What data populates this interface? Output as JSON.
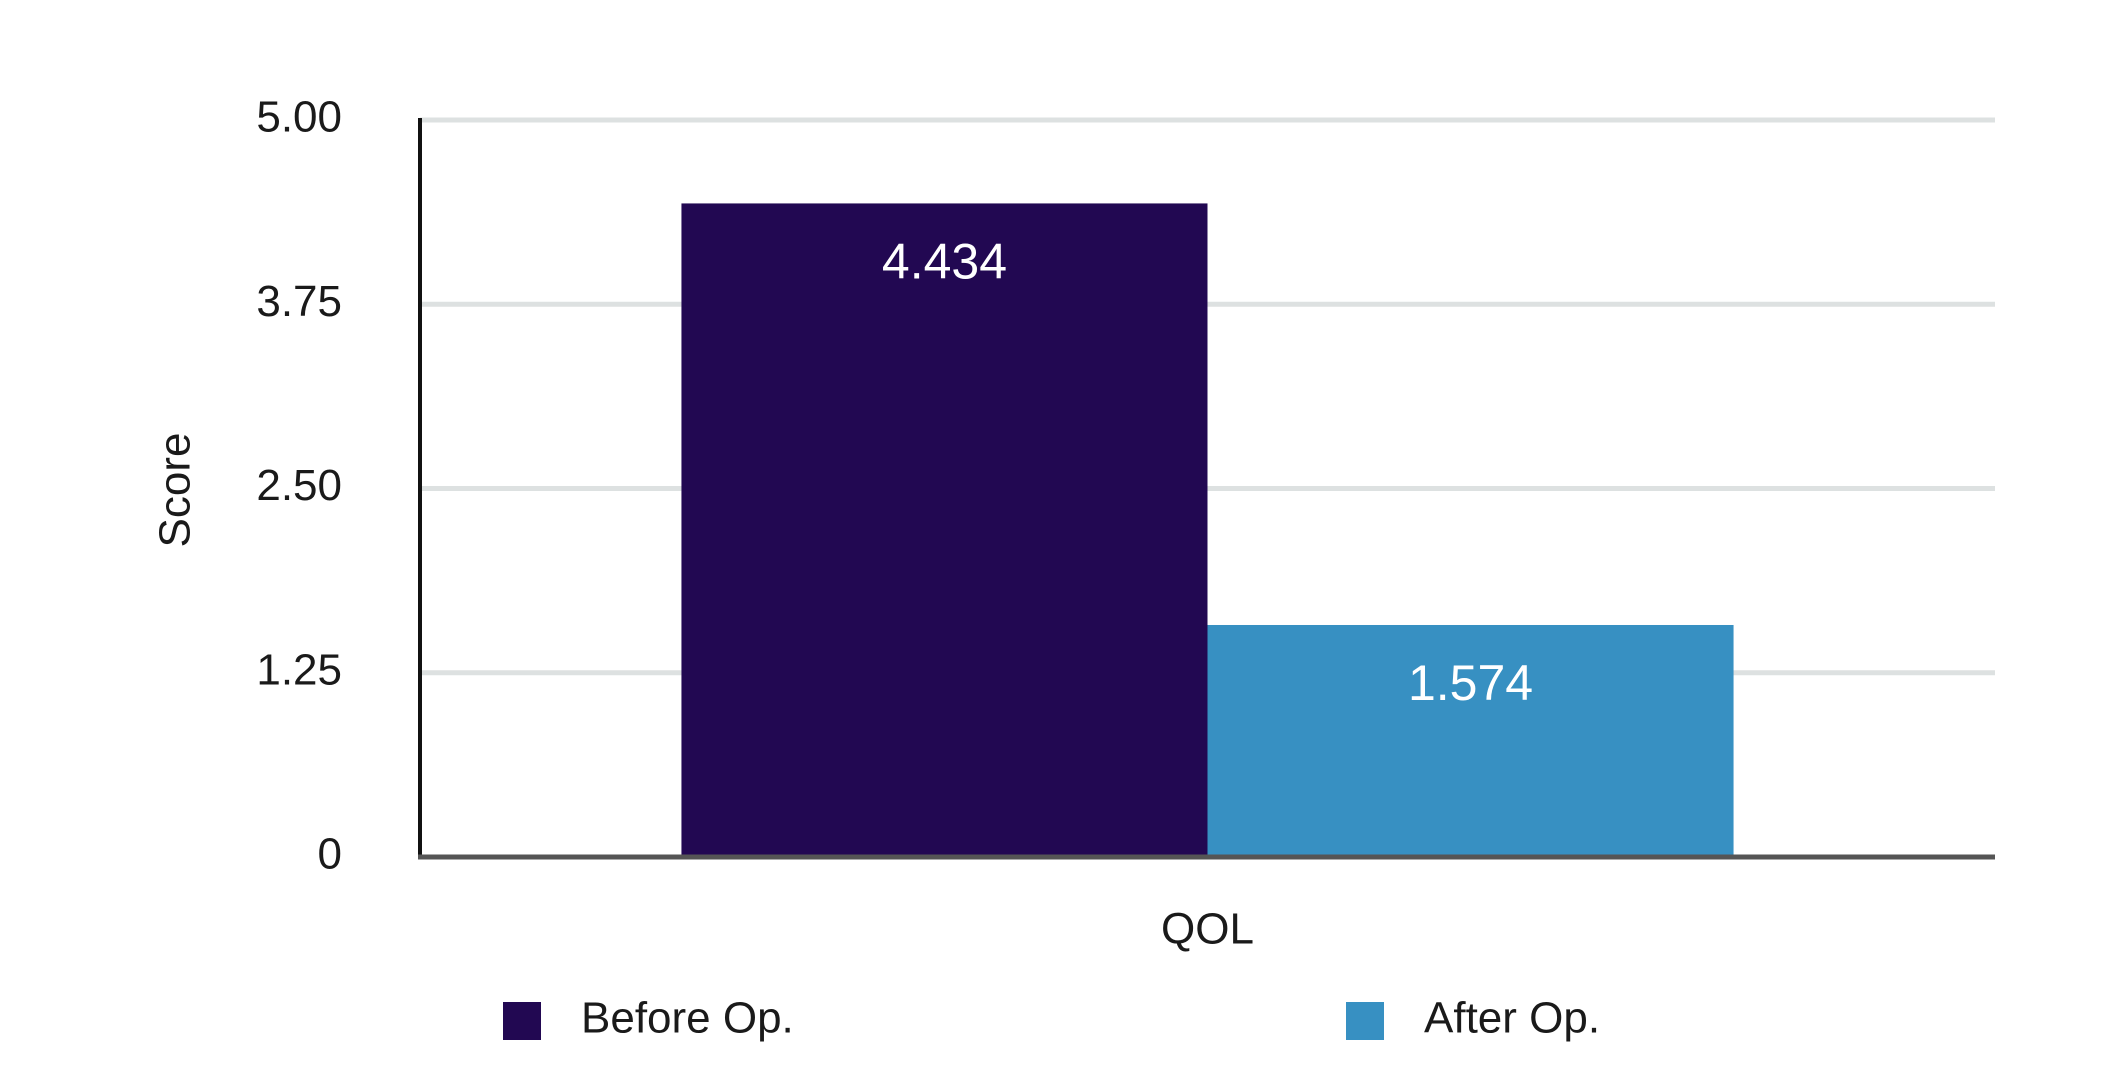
{
  "chart_data": {
    "type": "bar",
    "y_label": "Score",
    "categories": [
      "QOL"
    ],
    "series": [
      {
        "name": "Before Op.",
        "color": "#220852",
        "values": [
          4.434
        ]
      },
      {
        "name": "After Op.",
        "color": "#3790c2",
        "values": [
          1.574
        ]
      }
    ],
    "ylim": [
      0,
      5
    ],
    "yticks": [
      0,
      1.25,
      {
        "value": 2.5,
        "label": "2.50"
      },
      3.75,
      {
        "value": 5,
        "label": "5.00"
      }
    ],
    "grid": true,
    "legend": "bottom"
  }
}
